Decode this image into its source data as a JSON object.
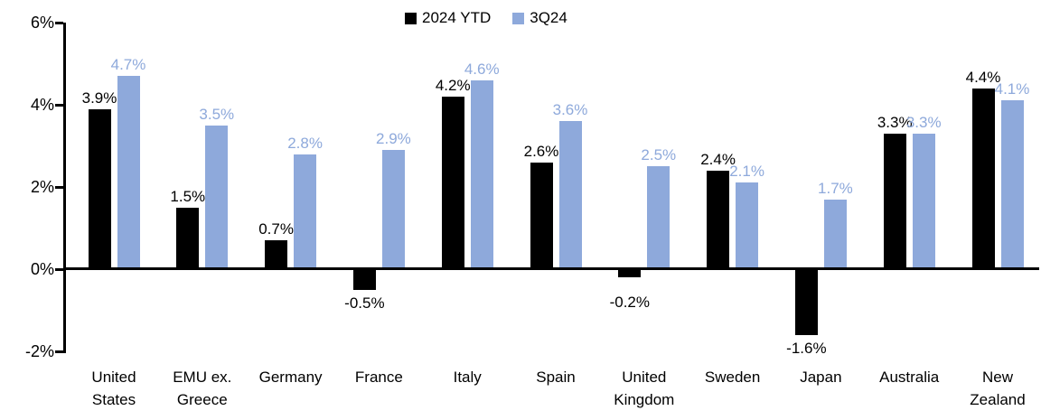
{
  "chart_data": {
    "type": "bar",
    "title": "",
    "xlabel": "",
    "ylabel": "",
    "ylim": [
      -2,
      6
    ],
    "y_ticks": [
      {
        "label": "6%",
        "value": 6
      },
      {
        "label": "4%",
        "value": 4
      },
      {
        "label": "2%",
        "value": 2
      },
      {
        "label": "0%",
        "value": 0
      },
      {
        "label": "-2%",
        "value": -2
      }
    ],
    "grid": false,
    "legend_position": "top-center",
    "categories": [
      "United States",
      "EMU ex. Greece",
      "Germany",
      "France",
      "Italy",
      "Spain",
      "United Kingdom",
      "Sweden",
      "Japan",
      "Australia",
      "New Zealand"
    ],
    "categories_display": [
      "United\nStates",
      "EMU ex.\nGreece",
      "Germany",
      "France",
      "Italy",
      "Spain",
      "United\nKingdom",
      "Sweden",
      "Japan",
      "Australia",
      "New\nZealand"
    ],
    "series": [
      {
        "name": "2024 YTD",
        "color": "#000000",
        "values": [
          3.9,
          1.5,
          0.7,
          -0.5,
          4.2,
          2.6,
          -0.2,
          2.4,
          -1.6,
          3.3,
          4.4
        ],
        "labels": [
          "3.9%",
          "1.5%",
          "0.7%",
          "-0.5%",
          "4.2%",
          "2.6%",
          "-0.2%",
          "2.4%",
          "-1.6%",
          "3.3%",
          "4.4%"
        ]
      },
      {
        "name": "3Q24",
        "color": "#8EA9DB",
        "values": [
          4.7,
          3.5,
          2.8,
          2.9,
          4.6,
          3.6,
          2.5,
          2.1,
          1.7,
          3.3,
          4.1
        ],
        "labels": [
          "4.7%",
          "3.5%",
          "2.8%",
          "2.9%",
          "4.6%",
          "3.6%",
          "2.5%",
          "2.1%",
          "1.7%",
          "3.3%",
          "4.1%"
        ]
      }
    ]
  },
  "colors": {
    "series_1": "#000000",
    "series_2": "#8EA9DB",
    "axis": "#000000",
    "background": "#ffffff"
  }
}
